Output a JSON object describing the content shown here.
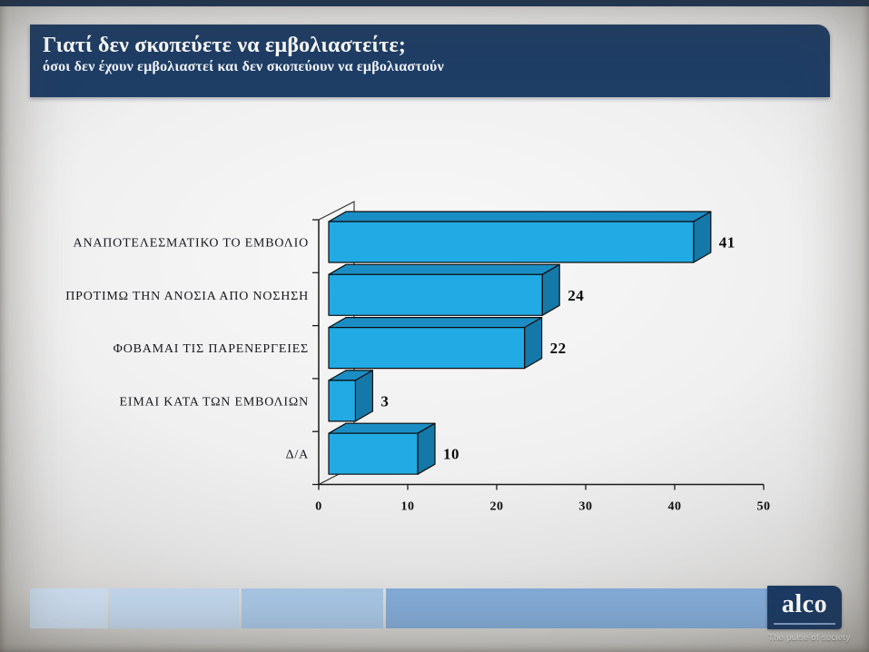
{
  "header": {
    "title": "Γιατί δεν σκοπεύετε να εμβολιαστείτε;",
    "subtitle": "όσοι δεν έχουν εμβολιαστεί και δεν σκοπεύουν να εμβολιαστούν"
  },
  "chart_data": {
    "type": "bar",
    "orientation": "horizontal",
    "style": "3d",
    "title": "",
    "xlabel": "",
    "ylabel": "",
    "categories": [
      "ΑΝΑΠΟΤΕΛΕΣΜΑΤΙΚΟ ΤΟ ΕΜΒΟΛΙΟ",
      "ΠΡΟΤΙΜΩ ΤΗΝ ΑΝΟΣΙΑ ΑΠΟ ΝΟΣΗΣΗ",
      "ΦΟΒΑΜΑΙ ΤΙΣ ΠΑΡΕΝΕΡΓΕΙΕΣ",
      "ΕΙΜΑΙ ΚΑΤΑ ΤΩΝ ΕΜΒΟΛΙΩΝ",
      "Δ/Α"
    ],
    "values": [
      41,
      24,
      22,
      3,
      10
    ],
    "xlim": [
      0,
      50
    ],
    "x_ticks": [
      0,
      10,
      20,
      30,
      40,
      50
    ],
    "grid": false,
    "legend": false,
    "value_labels_shown": true
  },
  "footer": {
    "logo_text": "alco",
    "tagline": "The pulse of society"
  },
  "colors": {
    "header_bg": "#1f3e66",
    "top_strip": "#1d3a61",
    "bar_front": "#22aae4",
    "bar_top": "#1a8ec4",
    "bar_side": "#1478a9",
    "logo_bg": "#1b3a63",
    "logo_underline": "#8fb6e0",
    "footer_rects": [
      "#cbdcee",
      "#c1d5eb",
      "#a7c6e4",
      "#83abd7"
    ]
  }
}
